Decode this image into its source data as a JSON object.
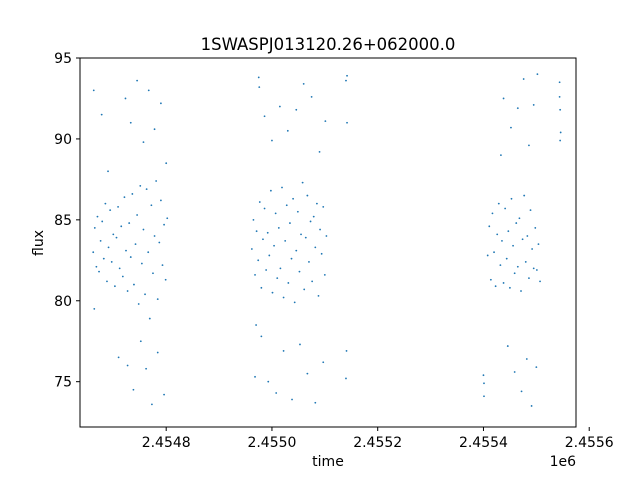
{
  "chart_data": {
    "type": "scatter",
    "title": "1SWASPJ013120.26+062000.0",
    "xlabel": "time",
    "ylabel": "flux",
    "x_offset_label": "1e6",
    "xlim": [
      2454637,
      2455575
    ],
    "ylim": [
      72.2,
      95
    ],
    "x_ticks": [
      2454800,
      2455000,
      2455200,
      2455400,
      2455600
    ],
    "x_tick_labels": [
      "2.4548",
      "2.4550",
      "2.4552",
      "2.4554",
      "2.4556"
    ],
    "y_ticks": [
      75,
      80,
      85,
      90,
      95
    ],
    "y_tick_labels": [
      "75",
      "80",
      "85",
      "90",
      "95"
    ],
    "grid": false,
    "marker_color": "#1f77b4",
    "series": [
      {
        "points": [
          [
            2454662,
            83.0
          ],
          [
            2454665,
            84.5
          ],
          [
            2454668,
            82.1
          ],
          [
            2454670,
            85.2
          ],
          [
            2454673,
            81.8
          ],
          [
            2454676,
            83.7
          ],
          [
            2454679,
            84.9
          ],
          [
            2454682,
            82.6
          ],
          [
            2454685,
            86.0
          ],
          [
            2454688,
            81.2
          ],
          [
            2454691,
            83.3
          ],
          [
            2454694,
            85.6
          ],
          [
            2454697,
            82.4
          ],
          [
            2454700,
            84.1
          ],
          [
            2454703,
            80.9
          ],
          [
            2454706,
            83.9
          ],
          [
            2454709,
            85.8
          ],
          [
            2454712,
            82.0
          ],
          [
            2454715,
            84.6
          ],
          [
            2454718,
            81.5
          ],
          [
            2454721,
            86.4
          ],
          [
            2454724,
            83.1
          ],
          [
            2454727,
            80.6
          ],
          [
            2454730,
            84.8
          ],
          [
            2454733,
            82.7
          ],
          [
            2454736,
            86.6
          ],
          [
            2454739,
            81.0
          ],
          [
            2454742,
            83.5
          ],
          [
            2454745,
            85.3
          ],
          [
            2454748,
            79.8
          ],
          [
            2454751,
            87.1
          ],
          [
            2454754,
            82.3
          ],
          [
            2454757,
            84.4
          ],
          [
            2454760,
            80.4
          ],
          [
            2454763,
            86.9
          ],
          [
            2454766,
            83.0
          ],
          [
            2454769,
            78.9
          ],
          [
            2454772,
            85.9
          ],
          [
            2454775,
            81.7
          ],
          [
            2454778,
            84.0
          ],
          [
            2454781,
            87.4
          ],
          [
            2454784,
            80.1
          ],
          [
            2454787,
            83.6
          ],
          [
            2454790,
            86.2
          ],
          [
            2454793,
            82.2
          ],
          [
            2454796,
            84.7
          ],
          [
            2454799,
            81.3
          ],
          [
            2454802,
            85.1
          ],
          [
            2454723,
            92.5
          ],
          [
            2454727,
            76.0
          ],
          [
            2454733,
            91.0
          ],
          [
            2454738,
            74.5
          ],
          [
            2454745,
            93.6
          ],
          [
            2454752,
            77.5
          ],
          [
            2454757,
            89.8
          ],
          [
            2454762,
            75.8
          ],
          [
            2454767,
            93.0
          ],
          [
            2454773,
            73.6
          ],
          [
            2454778,
            90.6
          ],
          [
            2454784,
            76.8
          ],
          [
            2454790,
            92.2
          ],
          [
            2454796,
            74.2
          ],
          [
            2454800,
            88.5
          ],
          [
            2454663,
            93.0
          ],
          [
            2454678,
            91.5
          ],
          [
            2454690,
            88.0
          ],
          [
            2454710,
            76.5
          ],
          [
            2454664,
            79.5
          ],
          [
            2454962,
            83.2
          ],
          [
            2454965,
            85.0
          ],
          [
            2454968,
            81.6
          ],
          [
            2454971,
            84.3
          ],
          [
            2454974,
            82.5
          ],
          [
            2454977,
            86.1
          ],
          [
            2454980,
            80.8
          ],
          [
            2454983,
            83.8
          ],
          [
            2454986,
            85.7
          ],
          [
            2454989,
            81.9
          ],
          [
            2454992,
            84.2
          ],
          [
            2454995,
            82.8
          ],
          [
            2454998,
            86.8
          ],
          [
            2455001,
            80.5
          ],
          [
            2455004,
            83.4
          ],
          [
            2455007,
            85.4
          ],
          [
            2455010,
            81.4
          ],
          [
            2455013,
            84.5
          ],
          [
            2455016,
            82.0
          ],
          [
            2455019,
            87.0
          ],
          [
            2455022,
            80.2
          ],
          [
            2455025,
            83.7
          ],
          [
            2455028,
            85.9
          ],
          [
            2455031,
            81.1
          ],
          [
            2455034,
            84.8
          ],
          [
            2455037,
            82.6
          ],
          [
            2455040,
            86.3
          ],
          [
            2455043,
            79.9
          ],
          [
            2455046,
            83.1
          ],
          [
            2455049,
            85.5
          ],
          [
            2455052,
            81.8
          ],
          [
            2455055,
            84.1
          ],
          [
            2455058,
            87.3
          ],
          [
            2455061,
            80.7
          ],
          [
            2455064,
            83.9
          ],
          [
            2455067,
            86.5
          ],
          [
            2455070,
            82.4
          ],
          [
            2455073,
            84.9
          ],
          [
            2455076,
            81.2
          ],
          [
            2455079,
            85.2
          ],
          [
            2455082,
            83.3
          ],
          [
            2455085,
            86.0
          ],
          [
            2455088,
            80.3
          ],
          [
            2455091,
            84.4
          ],
          [
            2455094,
            82.9
          ],
          [
            2455097,
            85.8
          ],
          [
            2455100,
            81.6
          ],
          [
            2455103,
            84.0
          ],
          [
            2454975,
            93.8
          ],
          [
            2454976,
            93.2
          ],
          [
            2454980,
            77.8
          ],
          [
            2454986,
            91.4
          ],
          [
            2454993,
            75.0
          ],
          [
            2455000,
            89.9
          ],
          [
            2455008,
            74.3
          ],
          [
            2455015,
            92.0
          ],
          [
            2455022,
            76.9
          ],
          [
            2455030,
            90.5
          ],
          [
            2455038,
            73.9
          ],
          [
            2455046,
            91.8
          ],
          [
            2455053,
            77.3
          ],
          [
            2455060,
            93.4
          ],
          [
            2455067,
            75.5
          ],
          [
            2455075,
            92.6
          ],
          [
            2455082,
            73.7
          ],
          [
            2455090,
            89.2
          ],
          [
            2455097,
            76.2
          ],
          [
            2455101,
            91.1
          ],
          [
            2454970,
            78.5
          ],
          [
            2454968,
            75.3
          ],
          [
            2455140,
            93.6
          ],
          [
            2455142,
            93.9
          ],
          [
            2455141,
            76.9
          ],
          [
            2455140,
            75.2
          ],
          [
            2455142,
            91.0
          ],
          [
            2455408,
            82.8
          ],
          [
            2455411,
            84.6
          ],
          [
            2455414,
            81.3
          ],
          [
            2455417,
            85.4
          ],
          [
            2455420,
            83.0
          ],
          [
            2455423,
            80.9
          ],
          [
            2455426,
            84.1
          ],
          [
            2455429,
            86.0
          ],
          [
            2455432,
            82.2
          ],
          [
            2455435,
            83.7
          ],
          [
            2455438,
            81.1
          ],
          [
            2455441,
            85.7
          ],
          [
            2455444,
            82.6
          ],
          [
            2455447,
            84.3
          ],
          [
            2455450,
            80.8
          ],
          [
            2455453,
            86.3
          ],
          [
            2455456,
            83.4
          ],
          [
            2455459,
            81.7
          ],
          [
            2455462,
            84.8
          ],
          [
            2455465,
            82.1
          ],
          [
            2455468,
            85.1
          ],
          [
            2455471,
            80.6
          ],
          [
            2455474,
            83.8
          ],
          [
            2455477,
            86.5
          ],
          [
            2455480,
            82.4
          ],
          [
            2455483,
            84.0
          ],
          [
            2455486,
            81.4
          ],
          [
            2455489,
            85.6
          ],
          [
            2455492,
            83.2
          ],
          [
            2455495,
            82.0
          ],
          [
            2455498,
            84.5
          ],
          [
            2455501,
            81.9
          ],
          [
            2455504,
            83.5
          ],
          [
            2455507,
            81.2
          ],
          [
            2455433,
            89.0
          ],
          [
            2455438,
            92.5
          ],
          [
            2455446,
            77.2
          ],
          [
            2455452,
            90.7
          ],
          [
            2455459,
            75.6
          ],
          [
            2455465,
            91.9
          ],
          [
            2455472,
            74.4
          ],
          [
            2455476,
            93.7
          ],
          [
            2455482,
            76.4
          ],
          [
            2455486,
            89.6
          ],
          [
            2455491,
            73.5
          ],
          [
            2455495,
            92.1
          ],
          [
            2455500,
            75.9
          ],
          [
            2455502,
            94.0
          ],
          [
            2455401,
            74.9
          ],
          [
            2455401,
            74.1
          ],
          [
            2455400,
            75.4
          ],
          [
            2455544,
            93.5
          ],
          [
            2455545,
            91.8
          ],
          [
            2455546,
            90.4
          ],
          [
            2455544,
            92.6
          ],
          [
            2455545,
            89.9
          ]
        ]
      }
    ]
  }
}
